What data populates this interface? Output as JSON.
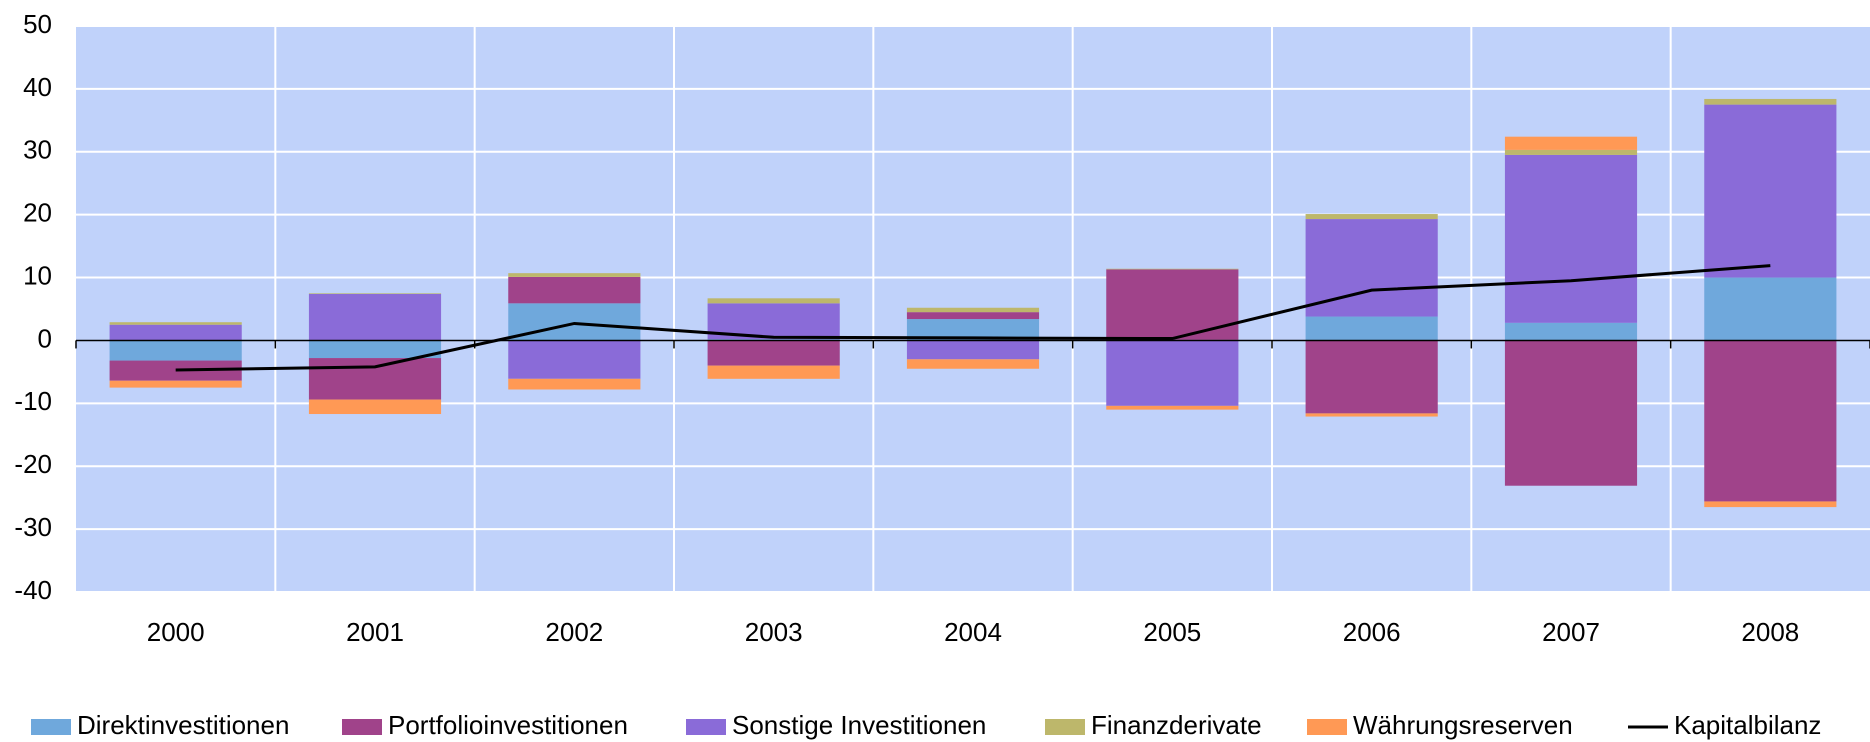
{
  "chart_data": {
    "type": "bar",
    "stacked": true,
    "categories": [
      "2000",
      "2001",
      "2002",
      "2003",
      "2004",
      "2005",
      "2006",
      "2007",
      "2008"
    ],
    "series": [
      {
        "name": "Direktinvestitionen",
        "color": "#6fa8dc",
        "values": [
          -3.2,
          -2.8,
          5.9,
          0.2,
          3.4,
          0.1,
          3.8,
          2.8,
          10.0
        ]
      },
      {
        "name": "Portfolioinvestitionen",
        "color": "#a0438a",
        "values": [
          -3.2,
          -6.6,
          4.2,
          -4.0,
          1.1,
          11.2,
          -11.6,
          -23.1,
          -25.6
        ]
      },
      {
        "name": "Sonstige Investitionen",
        "color": "#8a6bd8",
        "values": [
          2.5,
          7.4,
          -6.1,
          5.7,
          -3.0,
          -10.4,
          15.5,
          26.7,
          27.5
        ]
      },
      {
        "name": "Finanzderivate",
        "color": "#bdb76b",
        "values": [
          0.4,
          0.1,
          0.6,
          0.8,
          0.7,
          0.1,
          0.8,
          0.8,
          0.9
        ]
      },
      {
        "name": "Währungsreserven",
        "color": "#ff9955",
        "values": [
          -1.1,
          -2.3,
          -1.7,
          -2.1,
          -1.5,
          -0.6,
          -0.5,
          2.1,
          -0.9
        ]
      },
      {
        "name": "Kapitalbilanz",
        "color": "#000000",
        "type": "line",
        "values": [
          -4.7,
          -4.2,
          2.7,
          0.5,
          0.4,
          0.3,
          8.0,
          9.5,
          11.9
        ]
      }
    ],
    "ylim": [
      -40,
      50
    ],
    "yticks": [
      -40,
      -30,
      -20,
      -10,
      0,
      10,
      20,
      30,
      40,
      50
    ],
    "grid": true,
    "legend": "bottom"
  }
}
